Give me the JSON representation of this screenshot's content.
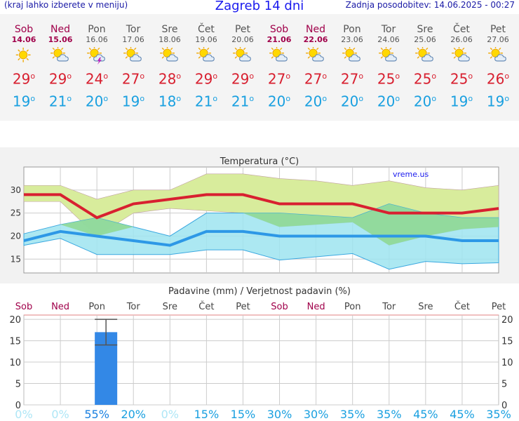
{
  "header": {
    "left": "(kraj lahko izberete v meniju)",
    "title": "Zagreb 14 dni",
    "right": "Zadnja posodobitev: 14.06.2025 - 00:27"
  },
  "days": [
    {
      "name": "Sob",
      "date": "14.06",
      "weekend": true,
      "icon": "sunny-icon",
      "max": "29",
      "min": "19"
    },
    {
      "name": "Ned",
      "date": "15.06",
      "weekend": true,
      "icon": "partly-cloudy-icon",
      "max": "29",
      "min": "21"
    },
    {
      "name": "Pon",
      "date": "16.06",
      "weekend": false,
      "icon": "thunderstorm-icon",
      "max": "24",
      "min": "20"
    },
    {
      "name": "Tor",
      "date": "17.06",
      "weekend": false,
      "icon": "partly-cloudy-icon",
      "max": "27",
      "min": "19"
    },
    {
      "name": "Sre",
      "date": "18.06",
      "weekend": false,
      "icon": "partly-cloudy-icon",
      "max": "28",
      "min": "18"
    },
    {
      "name": "Čet",
      "date": "19.06",
      "weekend": false,
      "icon": "partly-cloudy-icon",
      "max": "29",
      "min": "21"
    },
    {
      "name": "Pet",
      "date": "20.06",
      "weekend": false,
      "icon": "partly-cloudy-icon",
      "max": "29",
      "min": "21"
    },
    {
      "name": "Sob",
      "date": "21.06",
      "weekend": true,
      "icon": "partly-cloudy-icon",
      "max": "27",
      "min": "20"
    },
    {
      "name": "Ned",
      "date": "22.06",
      "weekend": true,
      "icon": "partly-cloudy-icon",
      "max": "27",
      "min": "20"
    },
    {
      "name": "Pon",
      "date": "23.06",
      "weekend": false,
      "icon": "partly-cloudy-icon",
      "max": "27",
      "min": "20"
    },
    {
      "name": "Tor",
      "date": "24.06",
      "weekend": false,
      "icon": "partly-cloudy-icon",
      "max": "25",
      "min": "20"
    },
    {
      "name": "Sre",
      "date": "25.06",
      "weekend": false,
      "icon": "partly-cloudy-icon",
      "max": "25",
      "min": "20"
    },
    {
      "name": "Čet",
      "date": "26.06",
      "weekend": false,
      "icon": "partly-cloudy-icon",
      "max": "25",
      "min": "19"
    },
    {
      "name": "Pet",
      "date": "27.06",
      "weekend": false,
      "icon": "partly-cloudy-icon",
      "max": "26",
      "min": "19"
    }
  ],
  "degree_symbol": "o",
  "colors": {
    "max": "#d82030",
    "min": "#1aa0e0",
    "max_band": "#d8ec9c",
    "min_band": "#9ee4f0",
    "overlap": "#8ed890",
    "precip_bar": "#3388e6",
    "weekend": "#a0004a",
    "prob": "#1aa0e0"
  },
  "chart_data": [
    {
      "type": "line",
      "title": "Temperatura (°C)",
      "watermark": "vreme.us",
      "categories": [
        "14.06",
        "15.06",
        "16.06",
        "17.06",
        "18.06",
        "19.06",
        "20.06",
        "21.06",
        "22.06",
        "23.06",
        "24.06",
        "25.06",
        "26.06",
        "27.06"
      ],
      "ylim": [
        12,
        35
      ],
      "yticks": [
        "15",
        "20",
        "25",
        "30"
      ],
      "grid": true,
      "series": [
        {
          "role": "max",
          "values": [
            29,
            29,
            24,
            27,
            28,
            29,
            29,
            27,
            27,
            27,
            25,
            25,
            25,
            26
          ]
        },
        {
          "role": "min",
          "values": [
            19,
            21,
            20,
            19,
            18,
            21,
            21,
            20,
            20,
            20,
            20,
            20,
            19,
            19
          ]
        },
        {
          "role": "max_upper",
          "values": [
            31,
            31,
            28,
            30,
            30,
            33.5,
            33.5,
            32.5,
            32,
            31,
            32,
            30.5,
            30,
            31
          ]
        },
        {
          "role": "max_lower",
          "values": [
            27.5,
            27.5,
            20,
            25,
            26,
            25.5,
            25,
            22,
            22.5,
            23,
            18,
            20,
            21.5,
            22
          ]
        },
        {
          "role": "min_upper",
          "values": [
            20.5,
            22.5,
            24,
            22,
            20,
            25,
            25,
            25,
            24.5,
            24,
            27,
            25,
            24,
            24
          ]
        },
        {
          "role": "min_lower",
          "values": [
            18,
            19.5,
            16,
            16,
            16,
            17,
            17,
            14.8,
            15.5,
            16.2,
            12.8,
            14.5,
            14,
            14.2
          ]
        }
      ]
    },
    {
      "type": "bar",
      "title": "Padavine (mm) / Verjetnost padavin (%)",
      "categories": [
        "Sob",
        "Ned",
        "Pon",
        "Tor",
        "Sre",
        "Čet",
        "Pet",
        "Sob",
        "Ned",
        "Pon",
        "Tor",
        "Sre",
        "Čet",
        "Pet"
      ],
      "weekend": [
        true,
        true,
        false,
        false,
        false,
        false,
        false,
        true,
        true,
        false,
        false,
        false,
        false,
        false
      ],
      "values": [
        0,
        0,
        17,
        0,
        0,
        0,
        0,
        0,
        0,
        0,
        0,
        0,
        0,
        0
      ],
      "error": [
        null,
        null,
        [
          14,
          20
        ],
        null,
        null,
        null,
        null,
        null,
        null,
        null,
        null,
        null,
        null,
        null
      ],
      "probability": [
        "0%",
        "0%",
        "55%",
        "20%",
        "0%",
        "15%",
        "15%",
        "30%",
        "30%",
        "35%",
        "35%",
        "45%",
        "45%",
        "35%"
      ],
      "ylim": [
        0,
        21
      ],
      "yticks": [
        "0",
        "5",
        "10",
        "15",
        "20"
      ],
      "grid": true
    }
  ]
}
